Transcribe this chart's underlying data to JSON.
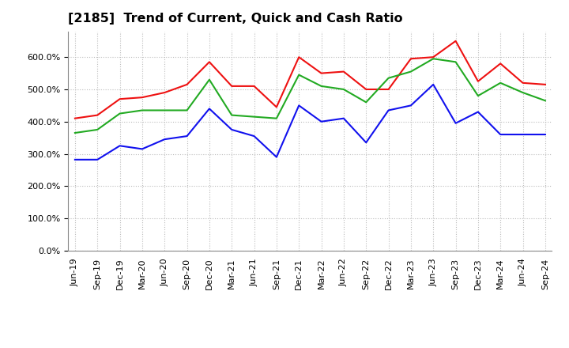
{
  "title": "[2185]  Trend of Current, Quick and Cash Ratio",
  "x_labels": [
    "Jun-19",
    "Sep-19",
    "Dec-19",
    "Mar-20",
    "Jun-20",
    "Sep-20",
    "Dec-20",
    "Mar-21",
    "Jun-21",
    "Sep-21",
    "Dec-21",
    "Mar-22",
    "Jun-22",
    "Sep-22",
    "Dec-22",
    "Mar-23",
    "Jun-23",
    "Sep-23",
    "Dec-23",
    "Mar-24",
    "Jun-24",
    "Sep-24"
  ],
  "current_ratio": [
    410,
    420,
    470,
    475,
    490,
    515,
    585,
    510,
    510,
    445,
    600,
    550,
    555,
    500,
    500,
    595,
    600,
    650,
    525,
    580,
    520,
    515
  ],
  "quick_ratio": [
    365,
    375,
    425,
    435,
    435,
    435,
    530,
    420,
    415,
    410,
    545,
    510,
    500,
    460,
    535,
    555,
    595,
    585,
    480,
    520,
    490,
    465
  ],
  "cash_ratio": [
    282,
    282,
    325,
    315,
    345,
    355,
    440,
    375,
    355,
    290,
    450,
    400,
    410,
    335,
    435,
    450,
    515,
    395,
    430,
    360,
    360,
    360
  ],
  "ylim": [
    0,
    680
  ],
  "yticks": [
    0,
    100,
    200,
    300,
    400,
    500,
    600
  ],
  "current_color": "#EE1111",
  "quick_color": "#22AA22",
  "cash_color": "#1111EE",
  "bg_color": "#FFFFFF",
  "plot_bg_color": "#FFFFFF",
  "grid_color": "#BBBBBB",
  "title_fontsize": 11.5,
  "legend_fontsize": 9,
  "tick_fontsize": 8
}
